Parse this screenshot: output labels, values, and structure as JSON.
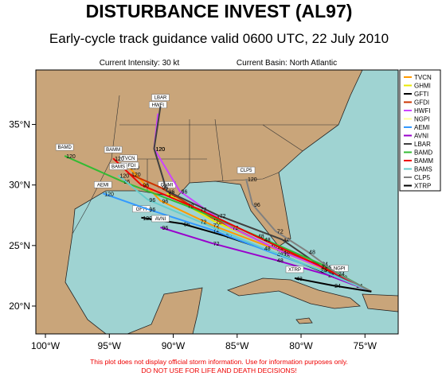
{
  "header": {
    "title": "DISTURBANCE INVEST (AL97)",
    "subtitle": "Early-cycle track guidance valid 0600 UTC, 22 July 2010",
    "intensity": "Current Intensity: 30 kt",
    "basin": "Current Basin: North Atlantic"
  },
  "map": {
    "xlim": [
      -100.75,
      -72.4
    ],
    "ylim": [
      17.7,
      39.5
    ],
    "xticks": [
      {
        "value": -100,
        "label": "100°W"
      },
      {
        "value": -95,
        "label": "95°W"
      },
      {
        "value": -90,
        "label": "90°W"
      },
      {
        "value": -85,
        "label": "85°W"
      },
      {
        "value": -80,
        "label": "80°W"
      },
      {
        "value": -75,
        "label": "75°W"
      }
    ],
    "yticks": [
      {
        "value": 20,
        "label": "20°N"
      },
      {
        "value": 25,
        "label": "25°N"
      },
      {
        "value": 30,
        "label": "30°N"
      },
      {
        "value": 35,
        "label": "35°N"
      }
    ],
    "tracks": [
      {
        "name": "TVCN",
        "color": "#ff9900",
        "lon": [
          -74.5,
          -78,
          -82,
          -87,
          -91,
          -93.5
        ],
        "lat": [
          21.2,
          23,
          24.7,
          26.7,
          28.7,
          31.5
        ],
        "hours": [
          null,
          24,
          48,
          72,
          96,
          120
        ]
      },
      {
        "name": "GHMI",
        "color": "#e8e800",
        "lon": [
          -74.5,
          -78.2,
          -82,
          -86.8,
          -90.5
        ],
        "lat": [
          21.2,
          23,
          24.8,
          27,
          29.3
        ],
        "hours": [
          null,
          24,
          48,
          72,
          96
        ]
      },
      {
        "name": "GFTI",
        "color": "#000000",
        "lon": [
          -74.5,
          -78,
          -81.5,
          -86,
          -89.3,
          -92.5
        ],
        "lat": [
          21.2,
          22.7,
          24.2,
          25.8,
          26.8,
          27.3
        ],
        "hours": [
          null,
          24,
          48,
          72,
          96,
          120
        ]
      },
      {
        "name": "GFDI",
        "color": "#cc3300",
        "lon": [
          -74.5,
          -78.3,
          -82.5,
          -87,
          -91,
          -93.4
        ],
        "lat": [
          21.2,
          23.2,
          25,
          27.3,
          29.8,
          30.9
        ],
        "hours": [
          null,
          24,
          48,
          72,
          96,
          120
        ]
      },
      {
        "name": "HWFI",
        "color": "#cc44ff",
        "lon": [
          -74.5,
          -78,
          -81.5,
          -85.5,
          -89.5,
          -91.5,
          -91.2
        ],
        "lat": [
          21.2,
          23,
          24.5,
          26.5,
          29.5,
          33,
          35.9
        ],
        "hours": [
          null,
          24,
          48,
          72,
          96,
          120,
          null
        ]
      },
      {
        "name": "NGPI",
        "color": "#ffff99",
        "lon": [
          -74.5,
          -75.8,
          -77
        ],
        "lat": [
          21.2,
          21.7,
          22.4
        ],
        "hours": [
          null,
          24,
          48
        ]
      },
      {
        "name": "AEMI",
        "color": "#3399ff",
        "lon": [
          -74.5,
          -78,
          -82,
          -87,
          -92,
          -95.5
        ],
        "lat": [
          21.2,
          22.8,
          24.3,
          26.3,
          28,
          29.3
        ],
        "hours": [
          null,
          24,
          48,
          72,
          96,
          120
        ]
      },
      {
        "name": "AVNI",
        "color": "#9900cc",
        "lon": [
          -74.5,
          -78,
          -82,
          -87,
          -91
        ],
        "lat": [
          21.2,
          22.6,
          23.8,
          25.2,
          26.5
        ],
        "hours": [
          null,
          24,
          48,
          72,
          96
        ]
      },
      {
        "name": "LBAR",
        "color": "#404040",
        "lon": [
          -74.5,
          -78.2,
          -81.5,
          -86.5,
          -90.5,
          -91.5,
          -91
        ],
        "lat": [
          21.2,
          23.1,
          25.5,
          27.5,
          29.5,
          33,
          36.5
        ],
        "hours": [
          null,
          24,
          48,
          72,
          96,
          120,
          null
        ]
      },
      {
        "name": "BAMD",
        "color": "#33bb33",
        "lon": [
          -74.5,
          -78.5,
          -83.5,
          -89,
          -94,
          -98.5
        ],
        "lat": [
          21.2,
          23.5,
          25.8,
          28.3,
          30.3,
          32.4
        ],
        "hours": [
          null,
          24,
          48,
          72,
          96,
          120
        ]
      },
      {
        "name": "BAMM",
        "color": "#ee0000",
        "lon": [
          -74.5,
          -78.5,
          -83,
          -88,
          -92.5,
          -94.7
        ],
        "lat": [
          21.2,
          23.3,
          25.5,
          28,
          30,
          32.2
        ],
        "hours": [
          null,
          24,
          48,
          72,
          96,
          120
        ]
      },
      {
        "name": "BAMS",
        "color": "#66cccc",
        "lon": [
          -74.5,
          -78.6,
          -83,
          -88,
          -92,
          -94.3
        ],
        "lat": [
          21.2,
          23,
          24.8,
          27,
          28.8,
          30.8
        ],
        "hours": [
          null,
          24,
          48,
          72,
          96,
          120
        ]
      },
      {
        "name": "CLP5",
        "color": "#808080",
        "lon": [
          -74.5,
          -77.2,
          -79.5,
          -82,
          -83.8,
          -84.3
        ],
        "lat": [
          21.2,
          22.7,
          24.5,
          26.2,
          28.4,
          30.5
        ],
        "hours": [
          null,
          24,
          48,
          72,
          96,
          120
        ]
      },
      {
        "name": "XTRP",
        "color": "#000000",
        "lon": [
          -74.5,
          -77.5,
          -80.5
        ],
        "lat": [
          21.2,
          21.7,
          22.3
        ],
        "hours": [
          null,
          24,
          48
        ]
      }
    ]
  },
  "footer": {
    "line1": "This plot does not display official storm information. Use for information purposes only.",
    "line2": "DO NOT USE FOR LIFE AND DEATH DECISIONS!"
  }
}
